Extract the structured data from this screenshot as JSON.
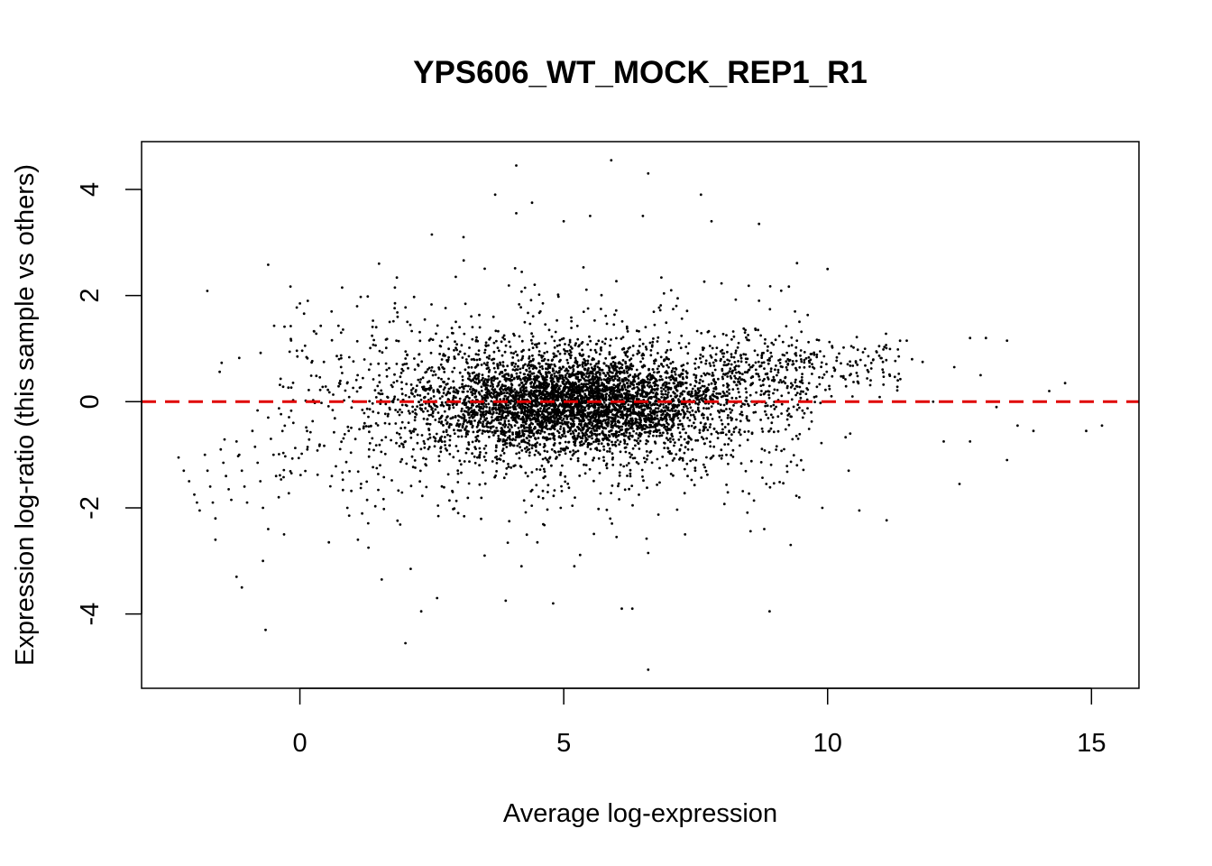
{
  "chart_data": {
    "type": "scatter",
    "title": "YPS606_WT_MOCK_REP1_R1",
    "xlabel": "Average log-expression",
    "ylabel": "Expression log-ratio (this sample vs others)",
    "xlim": [
      -3.0,
      15.9
    ],
    "ylim": [
      -5.4,
      4.9
    ],
    "xticks": [
      0,
      5,
      10,
      15
    ],
    "yticks": [
      -4,
      -2,
      0,
      2,
      4
    ],
    "grid": false,
    "legend": "none",
    "reference_line": {
      "y": 0,
      "style": "dashed",
      "color": "#e00000"
    },
    "point_color": "#000000",
    "n_points_approx": 5800,
    "points": [
      [
        -2.3,
        -1.05
      ],
      [
        -2.2,
        -1.3
      ],
      [
        -2.1,
        -1.5
      ],
      [
        -2.0,
        -1.75
      ],
      [
        -1.95,
        -1.9
      ],
      [
        -1.9,
        -2.05
      ],
      [
        -1.8,
        -1.0
      ],
      [
        -1.75,
        -1.3
      ],
      [
        -1.7,
        -1.6
      ],
      [
        -1.65,
        -1.9
      ],
      [
        -1.6,
        -2.2
      ],
      [
        -1.5,
        -0.9
      ],
      [
        -1.45,
        -1.15
      ],
      [
        -1.4,
        -1.4
      ],
      [
        -1.35,
        -1.65
      ],
      [
        -1.3,
        -1.85
      ],
      [
        -1.2,
        -0.75
      ],
      [
        -1.15,
        -1.0
      ],
      [
        -1.1,
        -1.3
      ],
      [
        -1.05,
        -1.6
      ],
      [
        -1.0,
        -1.9
      ],
      [
        -0.9,
        -0.55
      ],
      [
        -0.85,
        -0.85
      ],
      [
        -0.8,
        -1.15
      ],
      [
        -0.75,
        -1.5
      ],
      [
        -0.7,
        -2.0
      ],
      [
        -0.6,
        -0.3
      ],
      [
        -0.55,
        -0.7
      ],
      [
        -0.5,
        -1.0
      ],
      [
        -0.45,
        -1.4
      ],
      [
        -0.4,
        -1.8
      ],
      [
        -1.6,
        -2.6
      ],
      [
        -1.2,
        -3.3
      ],
      [
        -1.1,
        -3.5
      ],
      [
        -0.7,
        -3.0
      ],
      [
        -0.65,
        -4.3
      ],
      [
        -0.6,
        -2.4
      ],
      [
        -0.6,
        2.58
      ],
      [
        -0.3,
        -2.5
      ],
      [
        0.0,
        1.85
      ],
      [
        0.15,
        1.9
      ],
      [
        0.55,
        -2.65
      ],
      [
        0.6,
        1.7
      ],
      [
        0.8,
        2.15
      ],
      [
        0.9,
        -2.0
      ],
      [
        1.1,
        -2.6
      ],
      [
        1.3,
        -2.75
      ],
      [
        1.5,
        2.6
      ],
      [
        1.55,
        -3.35
      ],
      [
        1.8,
        2.15
      ],
      [
        2.0,
        -4.55
      ],
      [
        2.1,
        -3.15
      ],
      [
        2.3,
        -3.95
      ],
      [
        2.5,
        3.15
      ],
      [
        2.6,
        -3.7
      ],
      [
        3.0,
        -2.1
      ],
      [
        3.1,
        3.1
      ],
      [
        3.5,
        -2.9
      ],
      [
        3.7,
        3.9
      ],
      [
        3.9,
        -3.75
      ],
      [
        4.1,
        4.45
      ],
      [
        4.1,
        3.55
      ],
      [
        4.2,
        -3.1
      ],
      [
        4.4,
        3.75
      ],
      [
        4.5,
        -2.65
      ],
      [
        4.8,
        -3.8
      ],
      [
        5.0,
        3.4
      ],
      [
        5.2,
        -3.1
      ],
      [
        5.5,
        3.5
      ],
      [
        5.9,
        4.55
      ],
      [
        6.0,
        -2.55
      ],
      [
        6.1,
        -3.9
      ],
      [
        6.3,
        -3.9
      ],
      [
        6.5,
        3.5
      ],
      [
        6.6,
        4.3
      ],
      [
        6.6,
        -2.85
      ],
      [
        6.6,
        -5.05
      ],
      [
        7.3,
        -2.5
      ],
      [
        7.6,
        3.9
      ],
      [
        7.8,
        3.4
      ],
      [
        8.7,
        3.35
      ],
      [
        8.8,
        -2.4
      ],
      [
        8.9,
        -3.95
      ],
      [
        9.3,
        -2.7
      ],
      [
        9.9,
        -2.0
      ],
      [
        10.0,
        2.5
      ],
      [
        10.6,
        -2.05
      ],
      [
        10.4,
        -1.3
      ],
      [
        11.5,
        1.15
      ],
      [
        12.7,
        1.2
      ],
      [
        13.0,
        1.2
      ],
      [
        13.4,
        1.15
      ],
      [
        13.2,
        -0.1
      ],
      [
        13.6,
        -0.45
      ],
      [
        13.4,
        -1.1
      ],
      [
        13.9,
        -0.55
      ],
      [
        14.2,
        0.2
      ],
      [
        14.5,
        0.35
      ],
      [
        14.9,
        -0.55
      ],
      [
        15.2,
        -0.45
      ],
      [
        12.5,
        -1.55
      ],
      [
        12.7,
        -0.75
      ],
      [
        12.2,
        -0.75
      ],
      [
        12.0,
        0.0
      ],
      [
        11.8,
        0.75
      ],
      [
        12.4,
        0.65
      ],
      [
        12.9,
        0.5
      ],
      [
        11.6,
        0.8
      ]
    ]
  }
}
